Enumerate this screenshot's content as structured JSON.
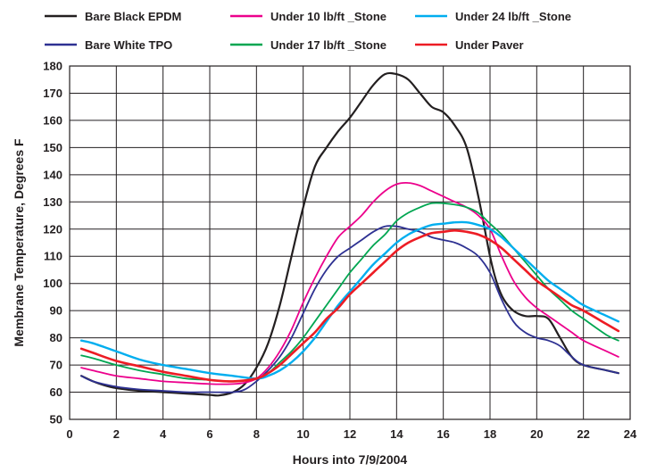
{
  "chart_data": {
    "type": "line",
    "xlabel": "Hours into 7/9/2004",
    "ylabel": "Membrane Temperature, Degrees F",
    "xlim": [
      0,
      24
    ],
    "ylim": [
      50,
      180
    ],
    "xticks": [
      0,
      2,
      4,
      6,
      8,
      10,
      12,
      14,
      16,
      18,
      20,
      22,
      24
    ],
    "yticks": [
      50,
      60,
      70,
      80,
      90,
      100,
      110,
      120,
      130,
      140,
      150,
      160,
      170,
      180
    ],
    "grid": true,
    "legend_position": "top",
    "series": [
      {
        "name": "Bare Black EPDM",
        "color": "#231f20",
        "x": [
          0.5,
          1,
          1.5,
          2,
          3,
          4,
          5,
          6,
          6.4,
          7,
          7.5,
          8,
          8.5,
          9,
          9.5,
          10,
          10.5,
          11,
          11.5,
          12,
          12.5,
          13,
          13.5,
          14,
          14.5,
          15,
          15.5,
          16,
          16.5,
          17,
          17.5,
          18,
          18.3,
          18.6,
          19,
          19.5,
          20,
          20.5,
          21,
          21.5,
          22,
          23,
          23.5
        ],
        "y": [
          66,
          64,
          62.5,
          61.5,
          60.5,
          60,
          59.5,
          59,
          58.8,
          60,
          63,
          69,
          78,
          92,
          110,
          128,
          143,
          150,
          156,
          161,
          167,
          173,
          177,
          177,
          175,
          170,
          165,
          163,
          158,
          150,
          132,
          110,
          100,
          94,
          90,
          88,
          88,
          87,
          80,
          73,
          70,
          68,
          67
        ]
      },
      {
        "name": "Bare White TPO",
        "color": "#2e3192",
        "x": [
          0.5,
          1,
          2,
          3,
          4,
          5,
          6,
          7,
          7.5,
          8,
          8.5,
          9,
          9.5,
          10,
          10.5,
          11,
          11.5,
          12,
          12.5,
          13,
          13.5,
          14,
          14.5,
          15,
          15.5,
          16,
          16.5,
          17,
          17.5,
          18,
          18.5,
          19,
          19.5,
          20,
          20.5,
          21,
          21.5,
          22,
          23,
          23.5
        ],
        "y": [
          66,
          64,
          62,
          61,
          60.5,
          60,
          60,
          60,
          61,
          64,
          68,
          73,
          80,
          89,
          98,
          105,
          110,
          113,
          116,
          119,
          121,
          121,
          120,
          119,
          117,
          116,
          115,
          113,
          110,
          104,
          94,
          86,
          82,
          80,
          79,
          77,
          73,
          70,
          68,
          67
        ]
      },
      {
        "name": "Under 10 lb/ft _Stone",
        "color": "#ec008c",
        "x": [
          0.5,
          1,
          2,
          3,
          4,
          5,
          6,
          7,
          7.5,
          8,
          8.5,
          9,
          9.5,
          10,
          10.5,
          11,
          11.5,
          12,
          12.5,
          13,
          13.5,
          14,
          14.5,
          15,
          15.5,
          16,
          16.5,
          17,
          17.5,
          18,
          18.5,
          19,
          19.5,
          20,
          20.5,
          21,
          21.5,
          22,
          23,
          23.5
        ],
        "y": [
          69,
          68,
          66,
          65,
          64,
          63.5,
          63,
          63,
          63.5,
          65,
          69,
          75,
          83,
          93,
          102,
          110,
          117,
          121,
          125,
          130,
          134,
          136.5,
          137,
          136,
          134,
          132,
          130,
          128,
          125,
          120,
          110,
          101,
          95,
          91,
          88,
          85,
          82,
          79,
          75,
          73
        ]
      },
      {
        "name": "Under 17 lb/ft _Stone",
        "color": "#00a651",
        "x": [
          0.5,
          1,
          2,
          3,
          4,
          5,
          6,
          7,
          8,
          8.5,
          9,
          9.5,
          10,
          10.5,
          11,
          11.5,
          12,
          12.5,
          13,
          13.5,
          14,
          14.5,
          15,
          15.5,
          16,
          16.5,
          17,
          17.5,
          18,
          18.5,
          19,
          19.5,
          20,
          20.5,
          21,
          21.5,
          22,
          23,
          23.5
        ],
        "y": [
          73.5,
          72.5,
          70,
          68,
          66.5,
          65,
          64.5,
          64,
          65,
          67,
          71,
          75,
          80,
          86,
          92,
          98,
          104,
          109,
          114,
          118,
          123,
          126,
          128,
          129.5,
          129.5,
          129,
          128,
          126,
          122,
          118,
          113,
          108,
          103,
          98,
          94,
          90,
          87,
          81,
          79
        ]
      },
      {
        "name": "Under 24 lb/ft _Stone",
        "color": "#00aeef",
        "x": [
          0.5,
          1,
          2,
          3,
          4,
          5,
          6,
          7,
          8,
          8.5,
          9,
          9.5,
          10,
          10.5,
          11,
          11.5,
          12,
          12.5,
          13,
          13.5,
          14,
          14.5,
          15,
          15.5,
          16,
          16.5,
          17,
          17.5,
          18,
          18.5,
          19,
          19.5,
          20,
          20.5,
          21,
          21.5,
          22,
          23,
          23.5
        ],
        "y": [
          79,
          78,
          75,
          72,
          70,
          68.5,
          67,
          66,
          65,
          66,
          68,
          71,
          75,
          80,
          86,
          92,
          97,
          102,
          107,
          111,
          115,
          118,
          120,
          121.5,
          122,
          122.5,
          122.5,
          121.5,
          120,
          117,
          113,
          109,
          105,
          101,
          98,
          95,
          92,
          88,
          86
        ]
      },
      {
        "name": "Under Paver",
        "color": "#ed1c24",
        "x": [
          0.5,
          1,
          2,
          3,
          4,
          5,
          6,
          7,
          8,
          8.5,
          9,
          9.5,
          10,
          10.5,
          11,
          11.5,
          12,
          12.5,
          13,
          13.5,
          14,
          14.5,
          15,
          15.5,
          16,
          16.5,
          17,
          17.5,
          18,
          18.5,
          19,
          19.5,
          20,
          20.5,
          21,
          21.5,
          22,
          23,
          23.5
        ],
        "y": [
          76,
          74.5,
          71.5,
          69.5,
          67.5,
          66,
          64.5,
          64,
          65,
          67,
          70,
          74,
          78,
          82,
          87,
          91,
          96,
          100,
          104,
          108,
          112,
          115,
          117,
          118.5,
          119,
          119.5,
          119,
          118,
          116,
          113,
          109,
          105,
          101,
          98,
          95,
          92,
          90,
          85,
          82.5
        ]
      }
    ]
  }
}
